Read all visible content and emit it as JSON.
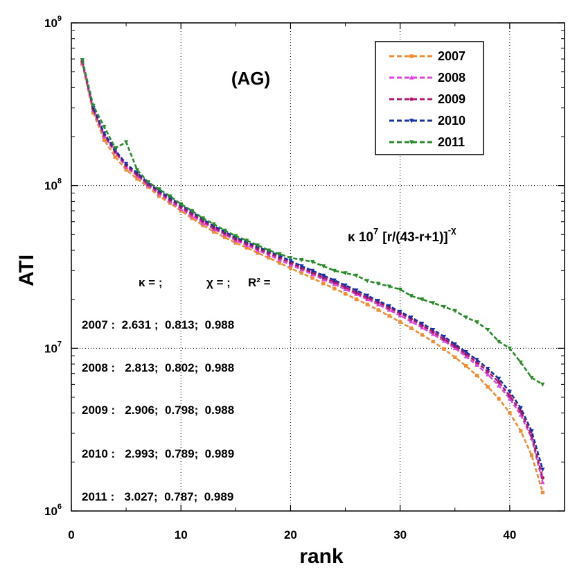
{
  "chart_data": {
    "type": "line",
    "title": "",
    "panel_label": "(AG)",
    "xlabel": "rank",
    "ylabel": "ATI",
    "xlim": [
      0,
      45
    ],
    "ylim": [
      1000000,
      1000000000
    ],
    "yscale": "log",
    "x_ticks": [
      "0",
      "10",
      "20",
      "30",
      "40"
    ],
    "y_ticks": [
      {
        "base": "10",
        "exp": "6"
      },
      {
        "base": "10",
        "exp": "7"
      },
      {
        "base": "10",
        "exp": "8"
      },
      {
        "base": "10",
        "exp": "9"
      }
    ],
    "grid": true,
    "legend_position": "top-right",
    "formula": {
      "text": "κ 10",
      "exp": "7",
      "rest": "[r/(43-r+1)]",
      "rest_exp": "-χ"
    },
    "fit_header": [
      "κ = ;",
      "χ = ;",
      "R² ="
    ],
    "fit_table": [
      "2007 :  2.631 ;  0.813;  0.988",
      "2008 :   2.813;  0.802;  0.988",
      "2009 :   2.906;  0.798;  0.988",
      "2010 :   2.993;  0.789;  0.989",
      "2011 :   3.027;  0.787;  0.989"
    ],
    "series": [
      {
        "name": "2007",
        "color": "#f08c32",
        "marker": "square",
        "values": [
          560000000.0,
          280000000.0,
          190000000.0,
          150000000.0,
          125000000.0,
          110000000.0,
          98000000.0,
          86000000.0,
          78000000.0,
          70000000.0,
          63000000.0,
          57000000.0,
          52000000.0,
          48000000.0,
          44500000.0,
          41500000.0,
          38500000.0,
          36000000.0,
          33500000.0,
          31000000.0,
          29000000.0,
          27000000.0,
          25000000.0,
          23300000.0,
          21600000.0,
          20000000.0,
          18600000.0,
          17200000.0,
          15800000.0,
          14500000.0,
          13300000.0,
          12100000.0,
          11000000.0,
          9900000.0,
          8800000.0,
          7800000.0,
          6800000.0,
          5800000.0,
          4900000.0,
          4000000.0,
          3100000.0,
          2200000.0,
          1300000.0
        ]
      },
      {
        "name": "2008",
        "color": "#dd44dd",
        "marker": "triangle",
        "values": [
          570000000.0,
          290000000.0,
          200000000.0,
          160000000.0,
          130000000.0,
          115000000.0,
          100000000.0,
          89000000.0,
          80000000.0,
          72000000.0,
          65000000.0,
          59000000.0,
          54000000.0,
          50000000.0,
          46000000.0,
          43000000.0,
          40000000.0,
          37500000.0,
          35000000.0,
          32500000.0,
          30500000.0,
          28500000.0,
          26500000.0,
          24800000.0,
          23000000.0,
          21500000.0,
          20000000.0,
          18600000.0,
          17200000.0,
          15900000.0,
          14600000.0,
          13400000.0,
          12200000.0,
          11100000.0,
          10000000.0,
          8900000.0,
          7900000.0,
          6900000.0,
          5900000.0,
          4900000.0,
          3900000.0,
          2800000.0,
          1500000.0
        ]
      },
      {
        "name": "2009",
        "color": "#b0186e",
        "marker": "circle",
        "values": [
          580000000.0,
          295000000.0,
          205000000.0,
          162000000.0,
          133000000.0,
          117000000.0,
          102000000.0,
          91000000.0,
          82000000.0,
          74000000.0,
          67000000.0,
          60500000.0,
          55000000.0,
          51000000.0,
          47000000.0,
          44000000.0,
          41000000.0,
          38500000.0,
          36000000.0,
          33500000.0,
          31200000.0,
          29200000.0,
          27200000.0,
          25500000.0,
          23700000.0,
          22000000.0,
          20500000.0,
          19100000.0,
          17700000.0,
          16400000.0,
          15100000.0,
          13800000.0,
          12600000.0,
          11400000.0,
          10300000.0,
          9200000.0,
          8200000.0,
          7200000.0,
          6200000.0,
          5100000.0,
          4100000.0,
          2900000.0,
          1600000.0
        ]
      },
      {
        "name": "2010",
        "color": "#1830a0",
        "marker": "triangle-down",
        "values": [
          590000000.0,
          300000000.0,
          210000000.0,
          165000000.0,
          136000000.0,
          120000000.0,
          104000000.0,
          93000000.0,
          84000000.0,
          76000000.0,
          69000000.0,
          62000000.0,
          56500000.0,
          52000000.0,
          48000000.0,
          45000000.0,
          42000000.0,
          39500000.0,
          37000000.0,
          34500000.0,
          32000000.0,
          30000000.0,
          28000000.0,
          26200000.0,
          24400000.0,
          22700000.0,
          21100000.0,
          19600000.0,
          18200000.0,
          16800000.0,
          15500000.0,
          14200000.0,
          13000000.0,
          11800000.0,
          10600000.0,
          9500000.0,
          8500000.0,
          7500000.0,
          6500000.0,
          5400000.0,
          4300000.0,
          3100000.0,
          1800000.0
        ]
      },
      {
        "name": "2011",
        "color": "#2a8a2a",
        "marker": "triangle-down",
        "values": [
          590000000.0,
          310000000.0,
          230000000.0,
          170000000.0,
          185000000.0,
          125000000.0,
          105000000.0,
          95000000.0,
          86000000.0,
          77000000.0,
          70000000.0,
          63000000.0,
          58000000.0,
          53000000.0,
          49000000.0,
          46000000.0,
          43000000.0,
          40000000.0,
          38000000.0,
          36000000.0,
          35000000.0,
          34000000.0,
          32000000.0,
          30000000.0,
          29000000.0,
          28000000.0,
          26000000.0,
          25000000.0,
          24000000.0,
          23000000.0,
          21000000.0,
          20000000.0,
          19000000.0,
          18000000.0,
          17000000.0,
          15500000.0,
          14500000.0,
          13000000.0,
          11000000.0,
          10000000.0,
          8200000.0,
          6600000.0,
          6000000.0
        ]
      }
    ]
  }
}
